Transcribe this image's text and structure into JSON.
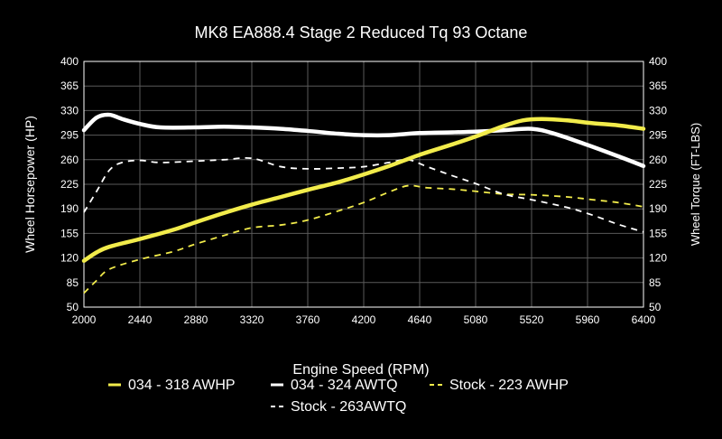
{
  "chart_data": {
    "type": "line",
    "title": "MK8 EA888.4 Stage 2 Reduced Tq 93 Octane",
    "xlabel": "Engine Speed (RPM)",
    "ylabel": "Wheel Horsepower (HP)",
    "y2label": "Wheel Torque (FT-LBS)",
    "xlim": [
      2000,
      6400
    ],
    "ylim": [
      50,
      400
    ],
    "y2lim": [
      50,
      400
    ],
    "x_ticks": [
      2000,
      2440,
      2880,
      3320,
      3760,
      4200,
      4640,
      5080,
      5520,
      5960,
      6400
    ],
    "y_ticks": [
      50,
      85,
      120,
      155,
      190,
      225,
      260,
      295,
      330,
      365,
      400
    ],
    "grid": true,
    "legend_position": "bottom",
    "series": [
      {
        "name": "034 - 318 AWHP",
        "color": "#f2ec4b",
        "dashed": false,
        "axis": "left",
        "x": [
          2000,
          2100,
          2200,
          2440,
          2700,
          2880,
          3100,
          3320,
          3550,
          3760,
          4000,
          4200,
          4400,
          4640,
          4900,
          5080,
          5300,
          5450,
          5600,
          5800,
          6000,
          6200,
          6400
        ],
        "y": [
          116,
          128,
          136,
          147,
          160,
          171,
          184,
          196,
          207,
          217,
          228,
          239,
          251,
          267,
          282,
          293,
          308,
          316,
          318,
          316,
          312,
          309,
          304
        ]
      },
      {
        "name": "034 - 324 AWTQ",
        "color": "#ffffff",
        "dashed": false,
        "axis": "right",
        "x": [
          2000,
          2100,
          2200,
          2300,
          2440,
          2600,
          2880,
          3100,
          3320,
          3550,
          3760,
          4000,
          4200,
          4400,
          4640,
          4900,
          5080,
          5300,
          5520,
          5700,
          5960,
          6200,
          6400
        ],
        "y": [
          302,
          320,
          324,
          318,
          311,
          306,
          306,
          307,
          306,
          304,
          301,
          297,
          295,
          295,
          298,
          299,
          300,
          302,
          304,
          297,
          281,
          265,
          251
        ]
      },
      {
        "name": "Stock - 223 AWHP",
        "color": "#f2ec4b",
        "dashed": true,
        "axis": "left",
        "x": [
          2000,
          2100,
          2200,
          2440,
          2700,
          2880,
          3100,
          3320,
          3550,
          3760,
          4000,
          4200,
          4400,
          4550,
          4700,
          4900,
          5080,
          5300,
          5520,
          5800,
          6000,
          6200,
          6400
        ],
        "y": [
          70,
          88,
          104,
          118,
          129,
          140,
          152,
          163,
          167,
          174,
          187,
          199,
          214,
          223,
          220,
          218,
          215,
          211,
          210,
          207,
          203,
          199,
          193
        ]
      },
      {
        "name": "Stock - 263AWTQ",
        "color": "#ffffff",
        "dashed": true,
        "axis": "right",
        "x": [
          2000,
          2100,
          2200,
          2300,
          2440,
          2600,
          2880,
          3100,
          3320,
          3550,
          3760,
          4000,
          4200,
          4400,
          4550,
          4700,
          4900,
          5080,
          5300,
          5520,
          5800,
          6000,
          6200,
          6400
        ],
        "y": [
          185,
          215,
          245,
          256,
          259,
          256,
          258,
          260,
          262,
          250,
          247,
          248,
          250,
          256,
          260,
          250,
          237,
          226,
          211,
          203,
          192,
          181,
          168,
          157
        ]
      }
    ]
  }
}
